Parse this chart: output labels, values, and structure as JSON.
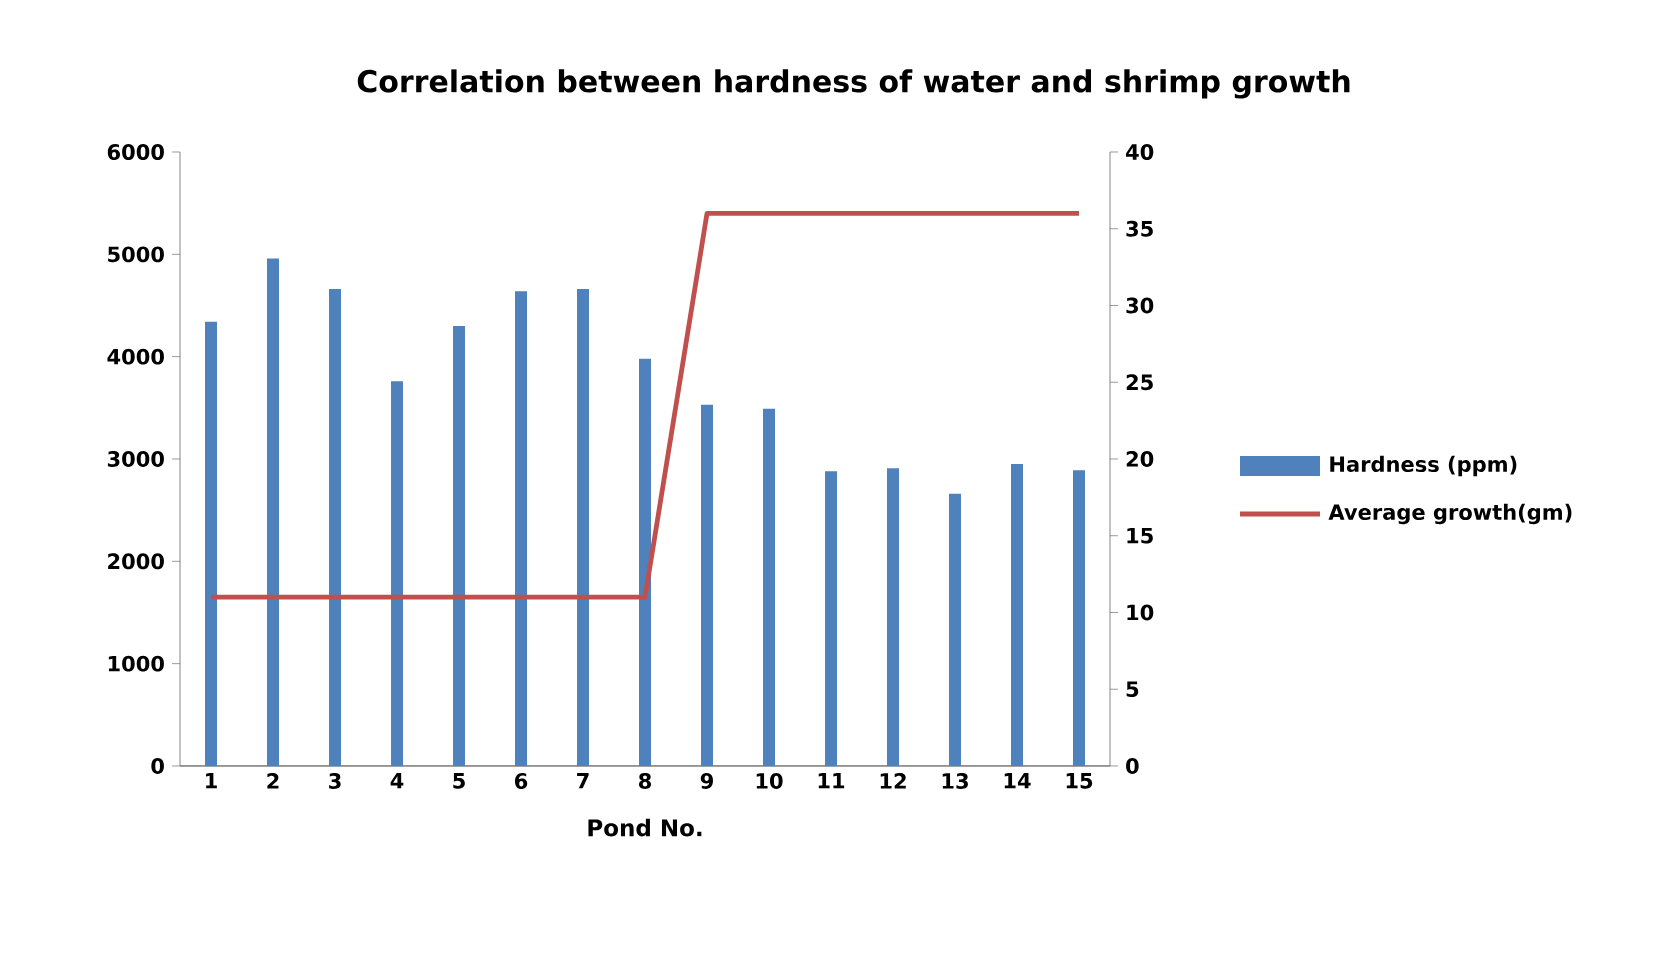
{
  "chart_data": {
    "type": "bar",
    "title": "Correlation between hardness of water and shrimp growth",
    "xlabel": "Pond No.",
    "categories": [
      "1",
      "2",
      "3",
      "4",
      "5",
      "6",
      "7",
      "8",
      "9",
      "10",
      "11",
      "12",
      "13",
      "14",
      "15"
    ],
    "series": [
      {
        "name": "Hardness (ppm)",
        "color": "#4f81bd",
        "values": [
          4340,
          4960,
          4660,
          3760,
          4300,
          4640,
          4660,
          3980,
          3530,
          3490,
          2880,
          2910,
          2660,
          2950,
          2890
        ]
      },
      {
        "name": "Average growth(gm)",
        "type": "line",
        "axis": "y2",
        "color": "#c0504d",
        "values": [
          11,
          11,
          11,
          11,
          11,
          11,
          11,
          11,
          36,
          36,
          36,
          36,
          36,
          36,
          36
        ]
      }
    ],
    "ylim": [
      0,
      6000
    ],
    "yticks": [
      0,
      1000,
      2000,
      3000,
      4000,
      5000,
      6000
    ],
    "y2lim": [
      0,
      40
    ],
    "y2ticks": [
      0,
      5,
      10,
      15,
      20,
      25,
      30,
      35,
      40
    ],
    "grid": false,
    "legend": "right",
    "marker": "none",
    "line_style": "solid"
  }
}
